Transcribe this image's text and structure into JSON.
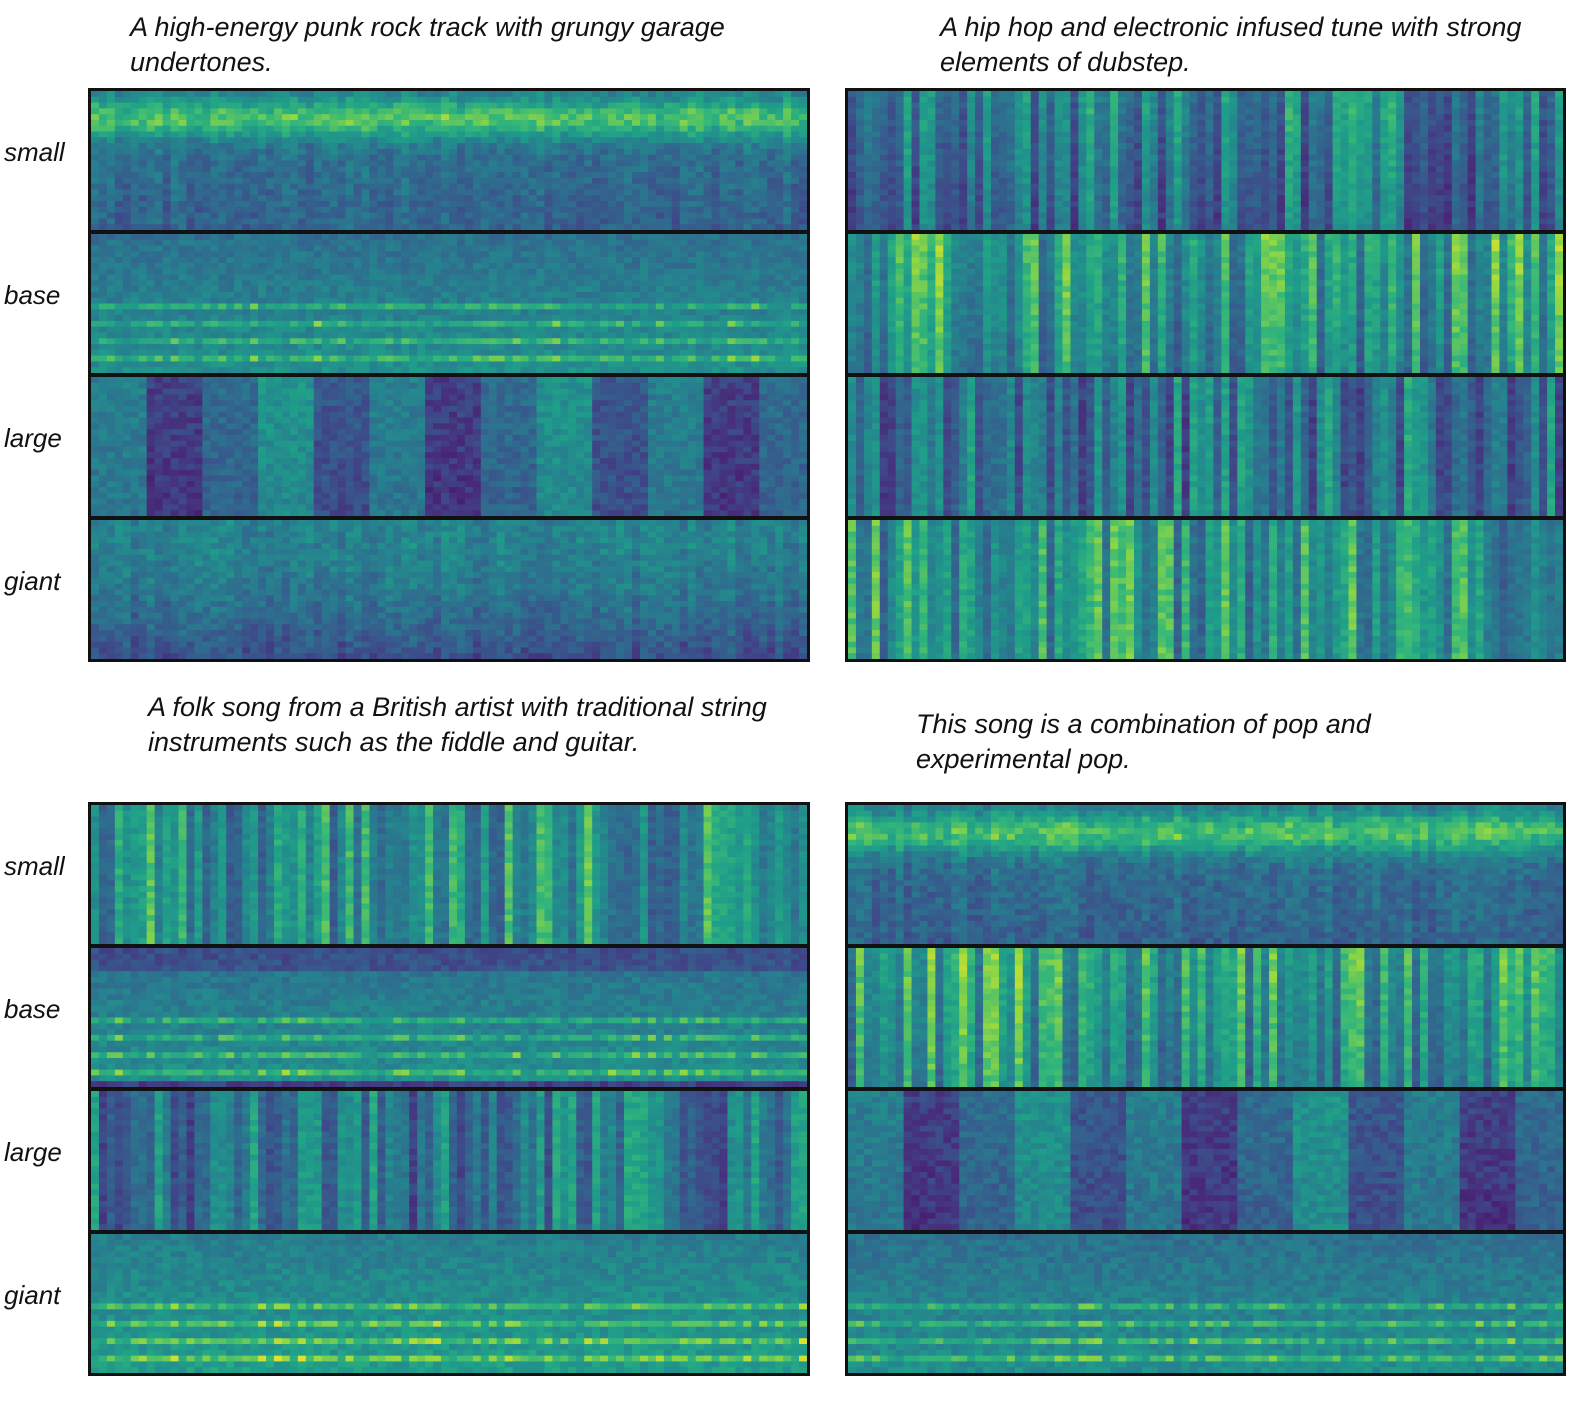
{
  "colormap": "viridis",
  "model_sizes": [
    "small",
    "base",
    "large",
    "giant"
  ],
  "panels": [
    {
      "id": "top-left",
      "caption": "A high-energy punk rock track with grungy garage undertones.",
      "rows": [
        {
          "label": "small",
          "style": "hiband",
          "seed": 11
        },
        {
          "label": "base",
          "style": "harmonic",
          "seed": 12
        },
        {
          "label": "large",
          "style": "dark-blocks",
          "seed": 13
        },
        {
          "label": "giant",
          "style": "dark-low",
          "seed": 14
        }
      ]
    },
    {
      "id": "top-right",
      "caption": "A hip hop and electronic infused tune with strong elements of dubstep.",
      "rows": [
        {
          "label": "small",
          "style": "vertical-dark",
          "seed": 21
        },
        {
          "label": "base",
          "style": "vertical-dense",
          "seed": 22
        },
        {
          "label": "large",
          "style": "vertical-grid",
          "seed": 23
        },
        {
          "label": "giant",
          "style": "vertical-soft",
          "seed": 24
        }
      ]
    },
    {
      "id": "bottom-left",
      "caption": "A folk song from a British artist with traditional string instruments such as the fiddle and guitar.",
      "rows": [
        {
          "label": "small",
          "style": "vertical-soft",
          "seed": 31
        },
        {
          "label": "base",
          "style": "harmonic-dark",
          "seed": 32
        },
        {
          "label": "large",
          "style": "vertical-grid",
          "seed": 33
        },
        {
          "label": "giant",
          "style": "harmonic-bright",
          "seed": 34
        }
      ]
    },
    {
      "id": "bottom-right",
      "caption": "This song is a combination of pop and experimental pop.",
      "rows": [
        {
          "label": "small",
          "style": "hiband",
          "seed": 41
        },
        {
          "label": "base",
          "style": "vertical-dense",
          "seed": 42
        },
        {
          "label": "large",
          "style": "dark-blocks",
          "seed": 43
        },
        {
          "label": "giant",
          "style": "harmonic",
          "seed": 44
        }
      ]
    }
  ]
}
